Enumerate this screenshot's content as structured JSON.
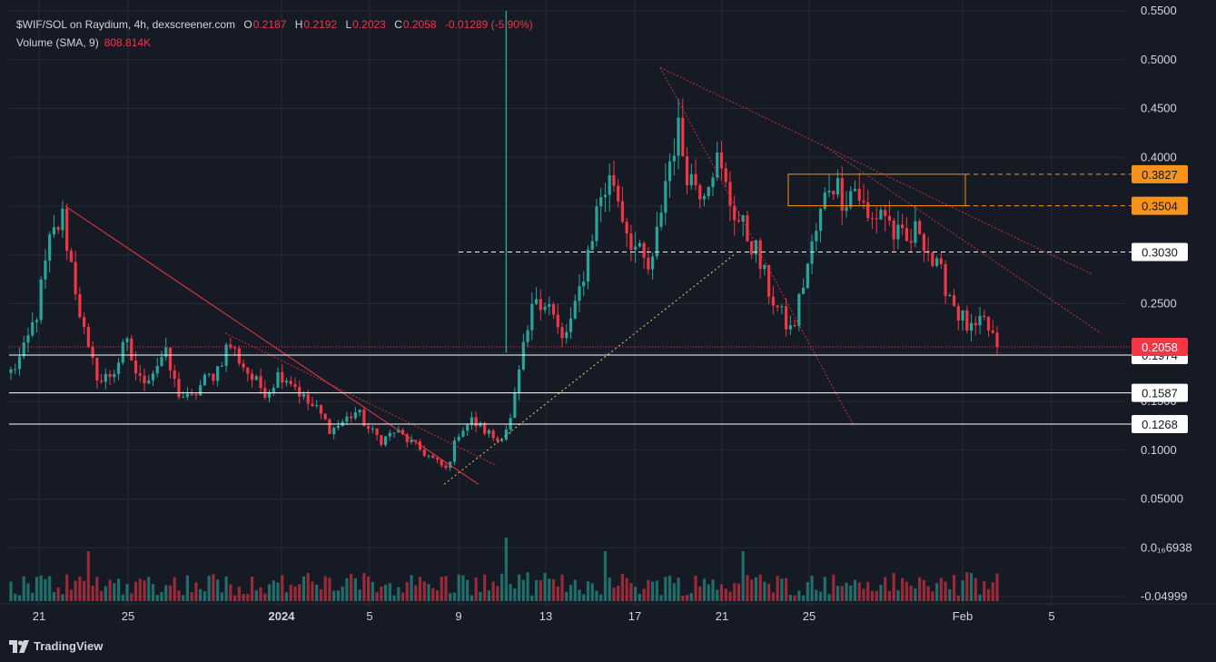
{
  "legend": {
    "pair": "$WIF/SOL on Raydium, 4h, dexscreener.com",
    "o_label": "O",
    "o_value": "0.2187",
    "h_label": "H",
    "h_value": "0.2192",
    "l_label": "L",
    "l_value": "0.2023",
    "c_label": "C",
    "c_value": "0.2058",
    "change": "-0.01289 (-5.90%)",
    "volume_label": "Volume (SMA, 9)",
    "volume_value": "808.814K"
  },
  "brand": "TradingView",
  "colors": {
    "background": "#161a25",
    "up": "#26a69a",
    "down": "#f23645",
    "grid": "#242a37",
    "text": "#d1d4dc",
    "orange": "#f7931a"
  },
  "chart_data": {
    "type": "candlestick",
    "ylim": [
      -0.04999,
      0.55
    ],
    "y_ticks": [
      "0.5500",
      "0.5000",
      "0.4500",
      "0.4000",
      "0.3500",
      "0.3000",
      "0.2500",
      "0.2000",
      "0.1500",
      "0.1000",
      "0.05000",
      "0.0₁₆6938",
      "-0.04999"
    ],
    "y_tick_values": [
      0.55,
      0.5,
      0.45,
      0.4,
      0.35,
      0.3,
      0.25,
      0.2,
      0.15,
      0.1,
      0.05,
      0.0,
      -0.04999
    ],
    "x_ticks": [
      "21",
      "25",
      "2024",
      "5",
      "9",
      "13",
      "17",
      "21",
      "25",
      "Feb",
      "5"
    ],
    "current_price_label": "0.2058",
    "current_price": 0.2058,
    "price_levels": [
      {
        "label": "0.3827",
        "value": 0.3827,
        "style": "orange-dashed"
      },
      {
        "label": "0.3504",
        "value": 0.3504,
        "style": "orange-dashed"
      },
      {
        "label": "0.3030",
        "value": 0.303,
        "style": "white-dashed"
      },
      {
        "label": "0.1974",
        "value": 0.1974,
        "style": "white-solid"
      },
      {
        "label": "0.1587",
        "value": 0.1587,
        "style": "white-solid"
      },
      {
        "label": "0.1268",
        "value": 0.1268,
        "style": "white-solid"
      }
    ],
    "key_points_close": [
      0.18,
      0.2,
      0.24,
      0.31,
      0.34,
      0.27,
      0.2,
      0.17,
      0.18,
      0.21,
      0.17,
      0.18,
      0.2,
      0.16,
      0.15,
      0.17,
      0.18,
      0.21,
      0.19,
      0.17,
      0.16,
      0.18,
      0.17,
      0.15,
      0.14,
      0.12,
      0.13,
      0.14,
      0.12,
      0.11,
      0.12,
      0.11,
      0.1,
      0.09,
      0.08,
      0.12,
      0.13,
      0.12,
      0.11,
      0.13,
      0.2,
      0.26,
      0.25,
      0.21,
      0.24,
      0.3,
      0.36,
      0.38,
      0.33,
      0.3,
      0.28,
      0.37,
      0.43,
      0.38,
      0.37,
      0.4,
      0.36,
      0.33,
      0.31,
      0.27,
      0.24,
      0.22,
      0.28,
      0.33,
      0.38,
      0.36,
      0.37,
      0.33,
      0.35,
      0.32,
      0.31,
      0.33,
      0.29,
      0.27,
      0.24,
      0.22,
      0.23,
      0.21
    ]
  }
}
